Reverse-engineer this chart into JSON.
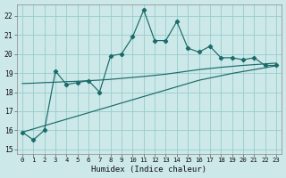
{
  "xlabel": "Humidex (Indice chaleur)",
  "bg_color": "#cce8e8",
  "grid_color": "#99cccc",
  "line_color": "#1a6b6b",
  "x": [
    0,
    1,
    2,
    3,
    4,
    5,
    6,
    7,
    8,
    9,
    10,
    11,
    12,
    13,
    14,
    15,
    16,
    17,
    18,
    19,
    20,
    21,
    22,
    23
  ],
  "y_main": [
    15.9,
    15.5,
    16.0,
    19.1,
    18.4,
    18.5,
    18.6,
    18.0,
    19.9,
    20.0,
    20.9,
    22.3,
    20.7,
    20.7,
    21.7,
    20.3,
    20.1,
    20.4,
    19.8,
    19.8,
    19.7,
    19.8,
    19.4,
    19.4
  ],
  "y_upper": [
    18.45,
    18.47,
    18.5,
    18.52,
    18.55,
    18.57,
    18.6,
    18.63,
    18.67,
    18.72,
    18.77,
    18.82,
    18.88,
    18.94,
    19.02,
    19.1,
    19.18,
    19.24,
    19.3,
    19.35,
    19.4,
    19.44,
    19.48,
    19.52
  ],
  "y_lower": [
    15.9,
    16.07,
    16.24,
    16.41,
    16.58,
    16.75,
    16.92,
    17.09,
    17.26,
    17.43,
    17.6,
    17.77,
    17.94,
    18.11,
    18.28,
    18.45,
    18.62,
    18.74,
    18.86,
    18.98,
    19.08,
    19.18,
    19.28,
    19.38
  ],
  "ylim": [
    14.75,
    22.6
  ],
  "xlim": [
    -0.5,
    23.5
  ],
  "yticks": [
    15,
    16,
    17,
    18,
    19,
    20,
    21,
    22
  ],
  "xticks": [
    0,
    1,
    2,
    3,
    4,
    5,
    6,
    7,
    8,
    9,
    10,
    11,
    12,
    13,
    14,
    15,
    16,
    17,
    18,
    19,
    20,
    21,
    22,
    23
  ]
}
